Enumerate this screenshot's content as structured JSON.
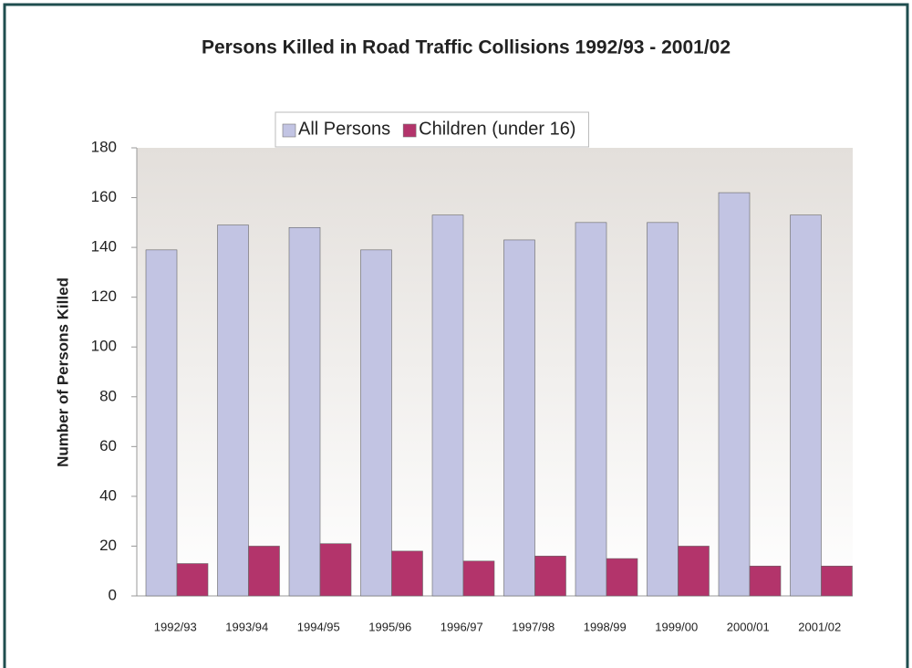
{
  "chart_data": {
    "type": "bar",
    "title": "Persons Killed in Road Traffic Collisions 1992/93 - 2001/02",
    "y_label": "Number of Persons Killed",
    "categories": [
      "1992/93",
      "1993/94",
      "1994/95",
      "1995/96",
      "1996/97",
      "1997/98",
      "1998/99",
      "1999/00",
      "2000/01",
      "2001/02"
    ],
    "series": [
      {
        "name": "All Persons",
        "color": "#c2c4e3",
        "values": [
          139,
          149,
          148,
          139,
          153,
          143,
          150,
          150,
          162,
          153
        ]
      },
      {
        "name": "Children (under 16)",
        "color": "#b3346b",
        "values": [
          13,
          20,
          21,
          18,
          14,
          16,
          15,
          20,
          12,
          12
        ]
      }
    ],
    "ylim": [
      0,
      180
    ],
    "yticks": [
      0,
      20,
      40,
      60,
      80,
      100,
      120,
      140,
      160,
      180
    ],
    "legend": "top"
  }
}
